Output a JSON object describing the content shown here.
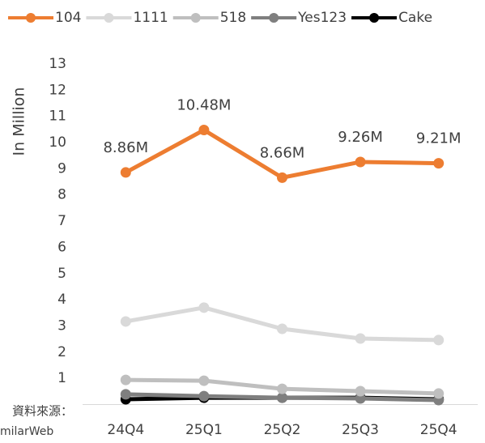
{
  "chart_data": {
    "type": "line",
    "y_label": "In Million",
    "source": [
      "資料來源：",
      "milarWeb"
    ],
    "categories": [
      "24Q4",
      "25Q1",
      "25Q2",
      "25Q3",
      "25Q4"
    ],
    "series": [
      {
        "name": "104",
        "color": "#ed7d31",
        "values": [
          8.86,
          10.48,
          8.66,
          9.26,
          9.21
        ],
        "value_labels": [
          "8.86M",
          "10.48M",
          "8.66M",
          "9.26M",
          "9.21M"
        ]
      },
      {
        "name": "1111",
        "color": "#d9d9d9",
        "values": [
          3.17,
          3.7,
          2.89,
          2.52,
          2.46
        ]
      },
      {
        "name": "518",
        "color": "#bfbfbf",
        "values": [
          0.94,
          0.91,
          0.6,
          0.51,
          0.42
        ]
      },
      {
        "name": "Yes123",
        "color": "#7f7f7f",
        "values": [
          0.39,
          0.32,
          0.26,
          0.23,
          0.17
        ]
      },
      {
        "name": "Cake",
        "color": "#000000",
        "values": [
          0.2,
          0.26,
          0.26,
          0.26,
          0.2
        ]
      }
    ],
    "ylim": [
      0,
      13
    ],
    "yticks": [
      1,
      2,
      3,
      4,
      5,
      6,
      7,
      8,
      9,
      10,
      11,
      12,
      13
    ],
    "legend": "top"
  }
}
